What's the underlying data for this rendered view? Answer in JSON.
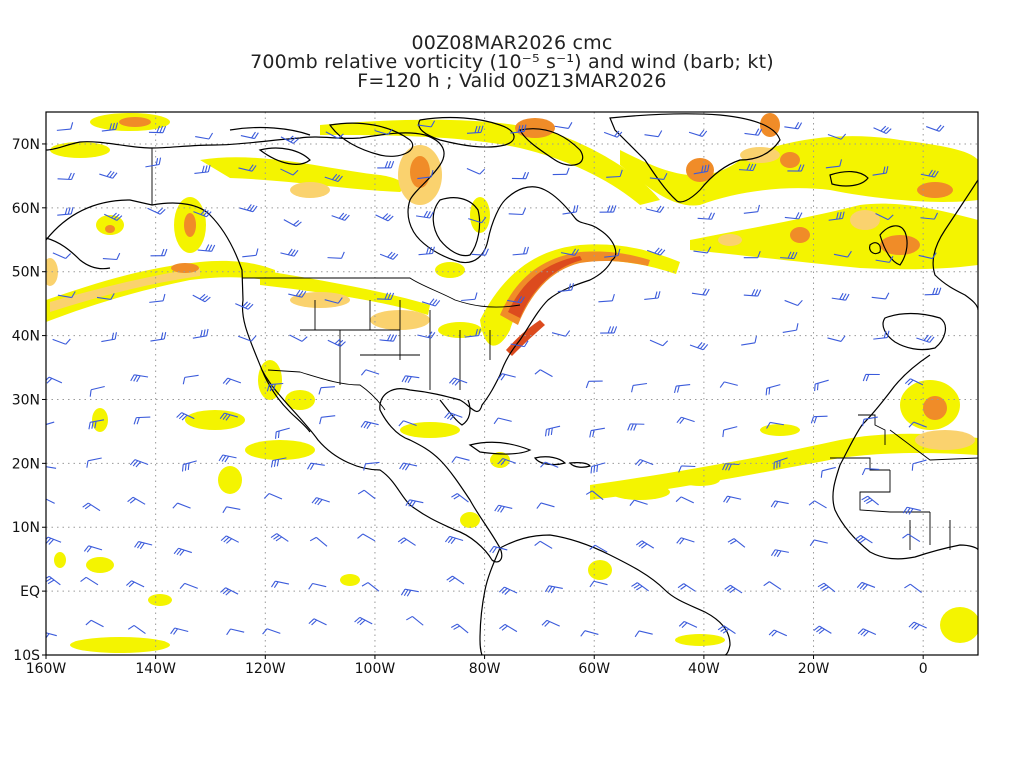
{
  "title": {
    "line1": "00Z08MAR2026 cmc",
    "line2": "700mb relative vorticity (10⁻⁵ s⁻¹) and wind (barb; kt)",
    "line3": "F=120 h ; Valid 00Z13MAR2026"
  },
  "axes": {
    "lon_range": [
      -160,
      10
    ],
    "lat_range": [
      -10,
      75
    ],
    "x_ticks": [
      {
        "value": -160,
        "label": "160W"
      },
      {
        "value": -140,
        "label": "140W"
      },
      {
        "value": -120,
        "label": "120W"
      },
      {
        "value": -100,
        "label": "100W"
      },
      {
        "value": -80,
        "label": "80W"
      },
      {
        "value": -60,
        "label": "60W"
      },
      {
        "value": -40,
        "label": "40W"
      },
      {
        "value": -20,
        "label": "20W"
      },
      {
        "value": 0,
        "label": "0"
      }
    ],
    "y_ticks": [
      {
        "value": 70,
        "label": "70N"
      },
      {
        "value": 60,
        "label": "60N"
      },
      {
        "value": 50,
        "label": "50N"
      },
      {
        "value": 40,
        "label": "40N"
      },
      {
        "value": 30,
        "label": "30N"
      },
      {
        "value": 20,
        "label": "20N"
      },
      {
        "value": 10,
        "label": "10N"
      },
      {
        "value": 0,
        "label": "EQ"
      },
      {
        "value": -10,
        "label": "10S"
      }
    ],
    "grid": "dotted"
  },
  "colors": {
    "shade_low": "#f4f400",
    "shade_mid": "#fad26e",
    "shade_high": "#f08c28",
    "shade_max": "#dc4b1e",
    "barb": "#3b5bdb",
    "coast": "#000000",
    "grid": "#9a9a9a"
  }
}
